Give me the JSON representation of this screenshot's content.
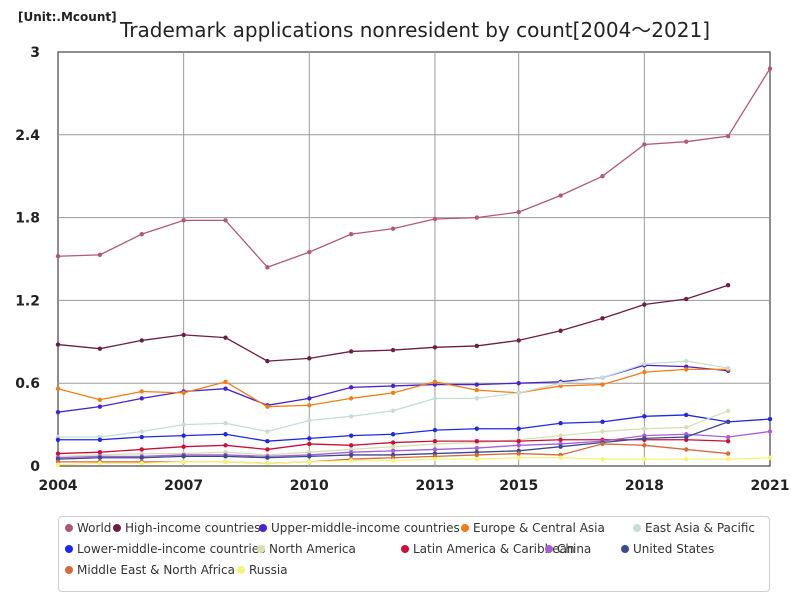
{
  "unit_label": "[Unit:.Mcount]",
  "chart_data": {
    "type": "line",
    "title": "Trademark applications nonresident by count[2004～2021]",
    "xlabel": "",
    "ylabel": "",
    "xlim": [
      2004,
      2021
    ],
    "ylim": [
      0,
      3
    ],
    "x_ticks": [
      "2004",
      "2007",
      "2010",
      "2013",
      "2015",
      "2018",
      "2021"
    ],
    "x_tick_values": [
      2004,
      2007,
      2010,
      2013,
      2015,
      2018,
      2021
    ],
    "y_ticks": [
      "0",
      "0.6",
      "1.2",
      "1.8",
      "2.4",
      "3"
    ],
    "y_tick_values": [
      0,
      0.6,
      1.2,
      1.8,
      2.4,
      3
    ],
    "grid": true,
    "legend_position": "bottom",
    "x": [
      2004,
      2005,
      2006,
      2007,
      2008,
      2009,
      2010,
      2011,
      2012,
      2013,
      2014,
      2015,
      2016,
      2017,
      2018,
      2019,
      2020,
      2021
    ],
    "series": [
      {
        "name": "World",
        "color": "#b05a78",
        "values": [
          1.52,
          1.53,
          1.68,
          1.78,
          1.78,
          1.44,
          1.55,
          1.68,
          1.72,
          1.79,
          1.8,
          1.84,
          1.96,
          2.1,
          2.33,
          2.35,
          2.39,
          2.88
        ]
      },
      {
        "name": "High-income countries",
        "color": "#6b1f45",
        "values": [
          0.88,
          0.85,
          0.91,
          0.95,
          0.93,
          0.76,
          0.78,
          0.83,
          0.84,
          0.86,
          0.87,
          0.91,
          0.98,
          1.07,
          1.17,
          1.21,
          1.31,
          null
        ]
      },
      {
        "name": "Upper-middle-income countries",
        "color": "#4a24c8",
        "values": [
          0.39,
          0.43,
          0.49,
          0.54,
          0.56,
          0.44,
          0.49,
          0.57,
          0.58,
          0.59,
          0.59,
          0.6,
          0.61,
          0.64,
          0.73,
          0.72,
          0.69,
          null
        ]
      },
      {
        "name": "Europe & Central Asia",
        "color": "#f07f1a",
        "values": [
          0.56,
          0.48,
          0.54,
          0.53,
          0.61,
          0.43,
          0.44,
          0.49,
          0.53,
          0.61,
          0.55,
          0.53,
          0.58,
          0.59,
          0.68,
          0.7,
          0.7,
          null
        ]
      },
      {
        "name": "East Asia & Pacific",
        "color": "#c8ddd8",
        "values": [
          0.21,
          0.21,
          0.25,
          0.3,
          0.31,
          0.25,
          0.33,
          0.36,
          0.4,
          0.49,
          0.49,
          0.53,
          0.6,
          0.64,
          0.74,
          0.76,
          0.71,
          null
        ]
      },
      {
        "name": "Lower-middle-income countries",
        "color": "#1f2ae0",
        "values": [
          0.19,
          0.19,
          0.21,
          0.22,
          0.23,
          0.18,
          0.2,
          0.22,
          0.23,
          0.26,
          0.27,
          0.27,
          0.31,
          0.32,
          0.36,
          0.37,
          0.32,
          0.34
        ]
      },
      {
        "name": "North America",
        "color": "#d6e0b4",
        "values": [
          0.07,
          0.08,
          0.09,
          0.09,
          0.1,
          0.08,
          0.1,
          0.12,
          0.14,
          0.16,
          0.17,
          0.19,
          0.22,
          0.25,
          0.27,
          0.28,
          0.4,
          null
        ]
      },
      {
        "name": "Latin America & Caribbean",
        "color": "#c8103c",
        "values": [
          0.09,
          0.1,
          0.12,
          0.14,
          0.15,
          0.12,
          0.16,
          0.15,
          0.17,
          0.18,
          0.18,
          0.18,
          0.19,
          0.19,
          0.19,
          0.19,
          0.18,
          null
        ]
      },
      {
        "name": "China",
        "color": "#a85ed8",
        "values": [
          0.06,
          0.07,
          0.07,
          0.08,
          0.08,
          0.07,
          0.08,
          0.1,
          0.11,
          0.12,
          0.13,
          0.15,
          0.16,
          0.18,
          0.22,
          0.23,
          0.21,
          0.25
        ]
      },
      {
        "name": "United States",
        "color": "#3a4a8c",
        "values": [
          0.05,
          0.06,
          0.06,
          0.07,
          0.07,
          0.06,
          0.07,
          0.08,
          0.08,
          0.09,
          0.1,
          0.11,
          0.14,
          0.17,
          0.2,
          0.21,
          0.32,
          null
        ]
      },
      {
        "name": "Middle East & North Africa",
        "color": "#d46a3e",
        "values": [
          0.03,
          0.03,
          0.03,
          0.03,
          0.03,
          0.02,
          0.03,
          0.05,
          0.06,
          0.07,
          0.08,
          0.09,
          0.08,
          0.16,
          0.15,
          0.12,
          0.09,
          null
        ]
      },
      {
        "name": "Russia",
        "color": "#f4f47a",
        "values": [
          0.01,
          0.02,
          0.02,
          0.03,
          0.03,
          0.02,
          0.03,
          0.04,
          0.04,
          0.05,
          0.05,
          0.06,
          0.06,
          0.05,
          0.05,
          0.05,
          0.05,
          0.06
        ]
      }
    ]
  }
}
